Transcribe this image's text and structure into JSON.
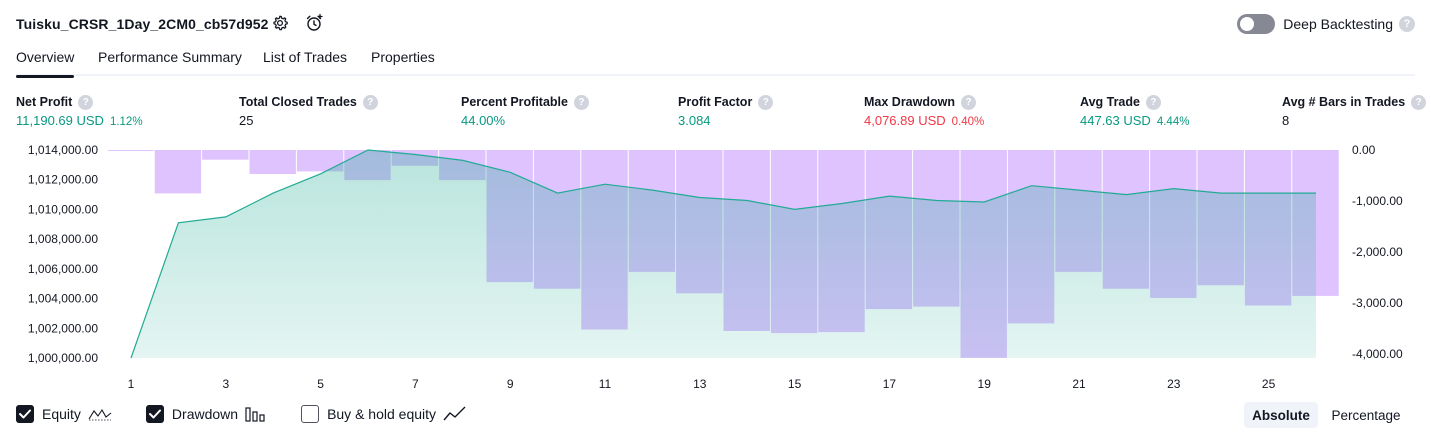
{
  "header": {
    "title": "Tuisku_CRSR_1Day_2CM0_cb57d952",
    "settings_icon": "settings-gear-icon",
    "alert_icon": "add-alert-clock-icon",
    "deep_backtesting_label": "Deep Backtesting",
    "deep_backtesting_on": false,
    "help_glyph": "?"
  },
  "tabs": [
    {
      "label": "Overview",
      "active": true
    },
    {
      "label": "Performance Summary",
      "active": false
    },
    {
      "label": "List of Trades",
      "active": false
    },
    {
      "label": "Properties",
      "active": false
    }
  ],
  "metrics": [
    {
      "label": "Net Profit",
      "value": "11,190.69 USD",
      "pct": "1.12%",
      "color": "green"
    },
    {
      "label": "Total Closed Trades",
      "value": "25",
      "pct": "",
      "color": "dark"
    },
    {
      "label": "Percent Profitable",
      "value": "44.00%",
      "pct": "",
      "color": "green"
    },
    {
      "label": "Profit Factor",
      "value": "3.084",
      "pct": "",
      "color": "green"
    },
    {
      "label": "Max Drawdown",
      "value": "4,076.89 USD",
      "pct": "0.40%",
      "color": "red"
    },
    {
      "label": "Avg Trade",
      "value": "447.63 USD",
      "pct": "4.44%",
      "color": "green"
    },
    {
      "label": "Avg # Bars in Trades",
      "value": "8",
      "pct": "",
      "color": "dark"
    }
  ],
  "colors": {
    "green": "#089981",
    "red": "#f23645",
    "equity_line": "#22ab94",
    "drawdown_fill": "#d9b8ff",
    "text": "#131722"
  },
  "chart_data": {
    "type": "area",
    "x_ticks": [
      "1",
      "3",
      "5",
      "7",
      "9",
      "11",
      "13",
      "15",
      "17",
      "19",
      "21",
      "23",
      "25"
    ],
    "y_left_ticks": [
      "1,014,000.00",
      "1,012,000.00",
      "1,010,000.00",
      "1,008,000.00",
      "1,006,000.00",
      "1,004,000.00",
      "1,002,000.00",
      "1,000,000.00"
    ],
    "y_left_range": [
      1000000,
      1014000
    ],
    "y_right_ticks": [
      "0.00",
      "-1,000.00",
      "-2,000.00",
      "-3,000.00",
      "-4,000.00"
    ],
    "y_right_range": [
      -4000,
      0
    ],
    "x_range": [
      1,
      26
    ],
    "series": [
      {
        "name": "Equity",
        "axis": "left",
        "kind": "area-line",
        "x": [
          1,
          2,
          3,
          4,
          5,
          6,
          7,
          8,
          9,
          10,
          11,
          12,
          13,
          14,
          15,
          16,
          17,
          18,
          19,
          20,
          21,
          22,
          23,
          24,
          25,
          26
        ],
        "values": [
          1000000,
          1009100,
          1009500,
          1011100,
          1012400,
          1014000,
          1013700,
          1013300,
          1012500,
          1011100,
          1011700,
          1011300,
          1010800,
          1010600,
          1010000,
          1010400,
          1010900,
          1010600,
          1010500,
          1011600,
          1011300,
          1011000,
          1011400,
          1011100,
          1011100,
          1011100
        ]
      },
      {
        "name": "Drawdown",
        "axis": "right",
        "kind": "bars",
        "x": [
          1,
          2,
          3,
          4,
          5,
          6,
          7,
          8,
          9,
          10,
          11,
          12,
          13,
          14,
          15,
          16,
          17,
          18,
          19,
          20,
          21,
          22,
          23,
          24,
          25,
          26
        ],
        "values": [
          -10,
          -850,
          -190,
          -470,
          -420,
          -590,
          -310,
          -590,
          -2590,
          -2720,
          -3520,
          -2390,
          -2810,
          -3550,
          -3590,
          -3570,
          -3120,
          -3070,
          -4077,
          -3400,
          -2390,
          -2720,
          -2900,
          -2650,
          -3050,
          -2860
        ]
      }
    ]
  },
  "legend": [
    {
      "label": "Equity",
      "checked": true,
      "icon": "equity-line-icon"
    },
    {
      "label": "Drawdown",
      "checked": true,
      "icon": "drawdown-bars-icon"
    },
    {
      "label": "Buy & hold equity",
      "checked": false,
      "icon": "buy-hold-line-icon"
    }
  ],
  "modes": {
    "absolute": "Absolute",
    "percentage": "Percentage",
    "active": "absolute"
  }
}
